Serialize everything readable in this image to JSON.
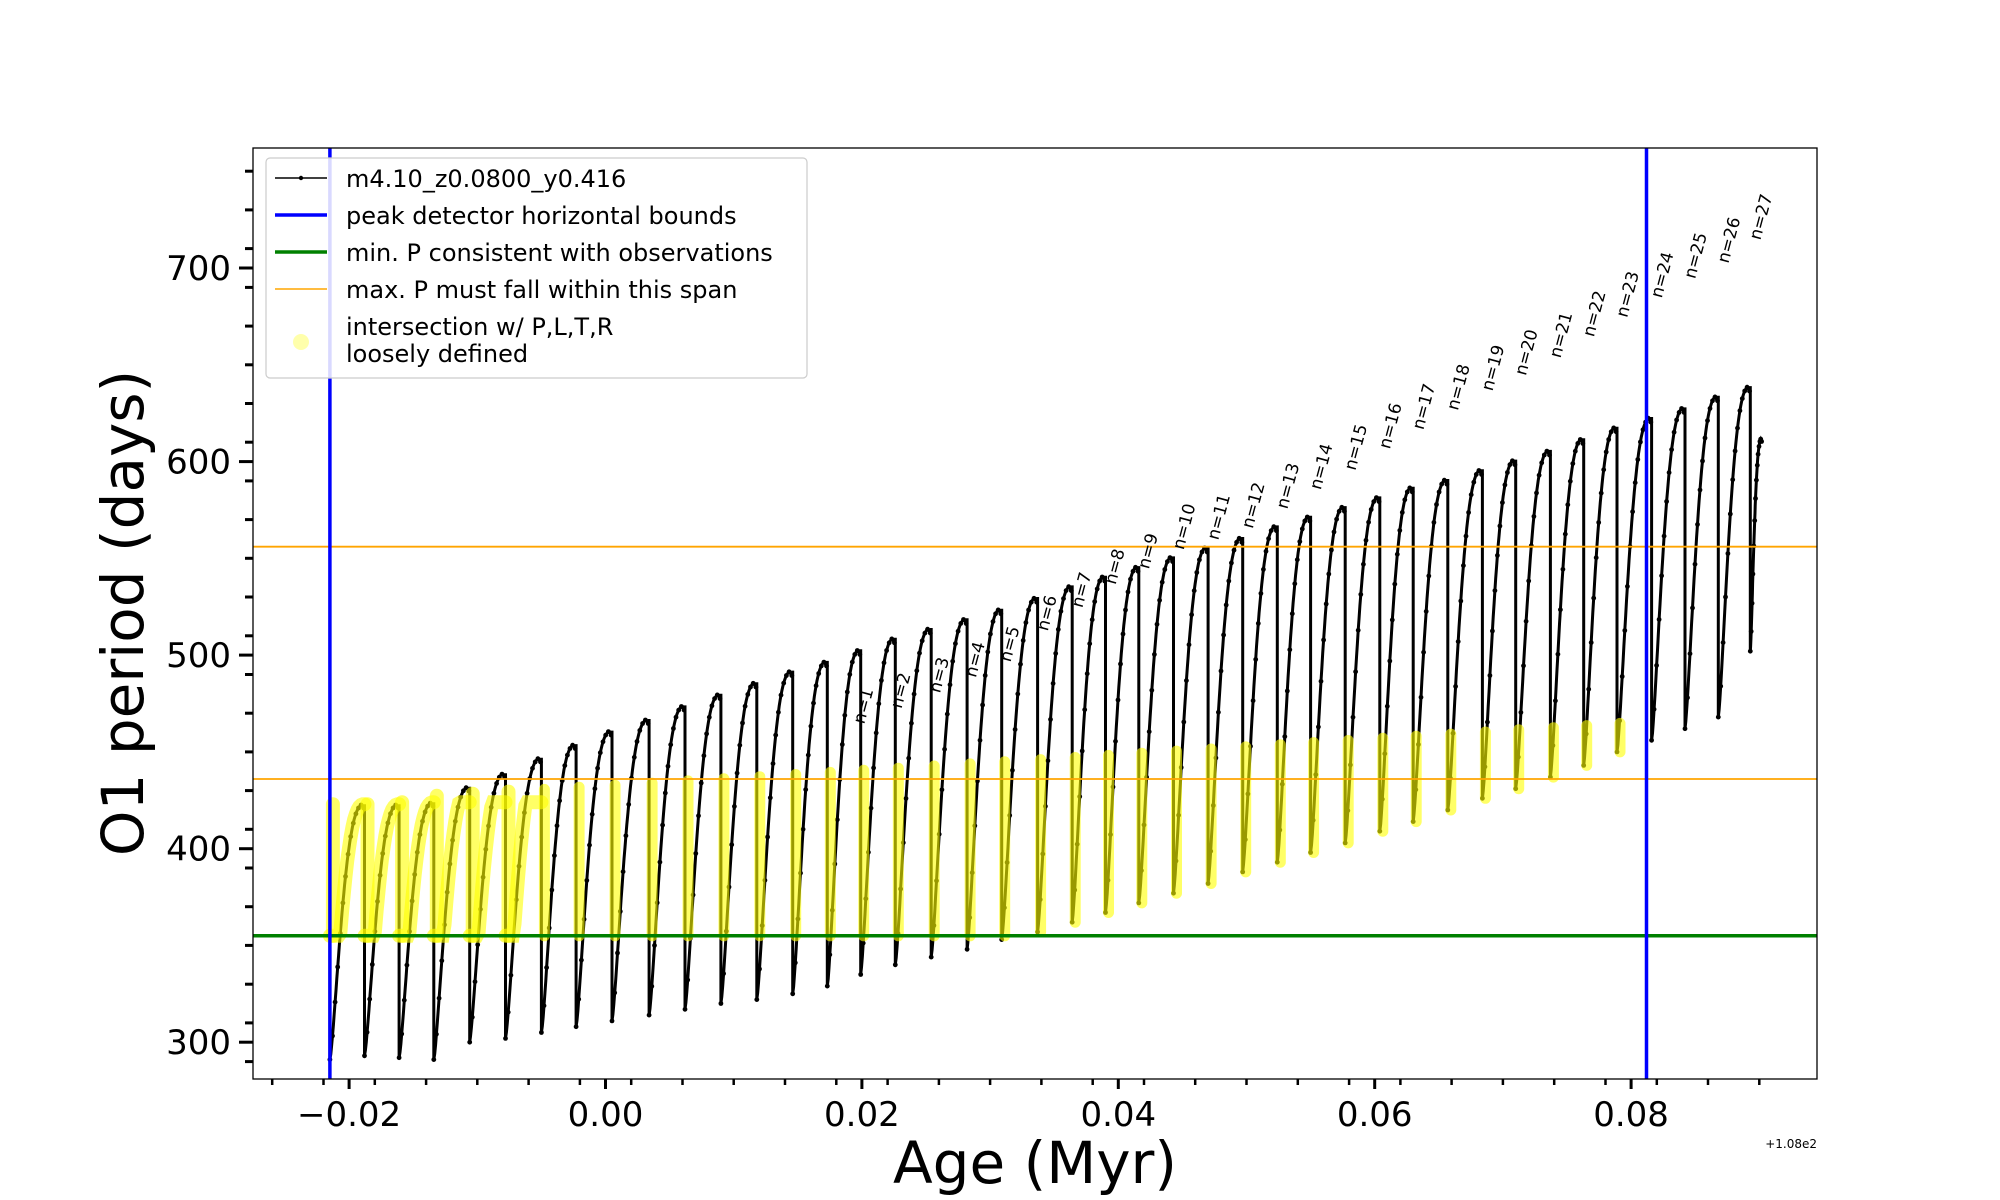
{
  "chart_data": {
    "type": "line",
    "xlabel": "Age (Myr)",
    "ylabel": "O1 period (days)",
    "x_offset_text": "+1.08e2",
    "xlim": [
      -0.0275,
      0.0945
    ],
    "ylim": [
      281,
      762
    ],
    "x_ticks": [
      -0.02,
      0.0,
      0.02,
      0.04,
      0.06,
      0.08
    ],
    "x_tick_labels": [
      "−0.02",
      "0.00",
      "0.02",
      "0.04",
      "0.06",
      "0.08"
    ],
    "y_ticks": [
      300,
      400,
      500,
      600,
      700
    ],
    "y_tick_labels": [
      "300",
      "400",
      "500",
      "600",
      "700"
    ],
    "grid": false,
    "legend_position": "upper-left",
    "legend": [
      {
        "label": "m4.10_z0.0800_y0.416",
        "style": "line-marker",
        "color": "#000000"
      },
      {
        "label": "peak detector horizontal bounds",
        "style": "line",
        "color": "#0000ff"
      },
      {
        "label": "min. P consistent with observations",
        "style": "line",
        "color": "#008000"
      },
      {
        "label": "max. P must fall within this span",
        "style": "thin-line",
        "color": "#ffa500"
      },
      {
        "label": "intersection w/ P,L,T,R",
        "label_line2": "loosely defined",
        "style": "marker",
        "color": "#ffff00"
      }
    ],
    "vertical_lines": [
      {
        "x": -0.0215,
        "color": "#0000ff",
        "role": "peak detector horizontal bounds"
      },
      {
        "x": 0.0812,
        "color": "#0000ff",
        "role": "peak detector horizontal bounds"
      }
    ],
    "horizontal_lines": [
      {
        "y": 355,
        "color": "#008000",
        "role": "min. P consistent with observations"
      },
      {
        "y": 436,
        "color": "#ffa500",
        "role": "max. P span lower"
      },
      {
        "y": 556,
        "color": "#ffa500",
        "role": "max. P span upper"
      }
    ],
    "pulses": [
      {
        "x": -0.0215,
        "min": 291,
        "max": 423
      },
      {
        "x": -0.0188,
        "min": 293,
        "max": 423
      },
      {
        "x": -0.0161,
        "min": 292,
        "max": 424
      },
      {
        "x": -0.0134,
        "min": 291,
        "max": 432
      },
      {
        "x": -0.0106,
        "min": 300,
        "max": 439
      },
      {
        "x": -0.0078,
        "min": 302,
        "max": 447
      },
      {
        "x": -0.005,
        "min": 305,
        "max": 454
      },
      {
        "x": -0.0023,
        "min": 308,
        "max": 461
      },
      {
        "x": 0.0005,
        "min": 311,
        "max": 467
      },
      {
        "x": 0.0034,
        "min": 314,
        "max": 474
      },
      {
        "x": 0.0062,
        "min": 317,
        "max": 480
      },
      {
        "x": 0.009,
        "min": 320,
        "max": 486
      },
      {
        "x": 0.0118,
        "min": 322,
        "max": 492
      },
      {
        "x": 0.0146,
        "min": 325,
        "max": 497
      },
      {
        "x": 0.0173,
        "min": 329,
        "max": 503
      },
      {
        "x": 0.0199,
        "min": 335,
        "max": 509
      },
      {
        "x": 0.0226,
        "min": 340,
        "max": 514
      },
      {
        "x": 0.0254,
        "min": 344,
        "max": 519
      },
      {
        "x": 0.0282,
        "min": 348,
        "max": 524
      },
      {
        "x": 0.0309,
        "min": 353,
        "max": 530
      },
      {
        "x": 0.0337,
        "min": 357,
        "max": 536
      },
      {
        "x": 0.0364,
        "min": 362,
        "max": 541
      },
      {
        "x": 0.039,
        "min": 367,
        "max": 546
      },
      {
        "x": 0.0416,
        "min": 372,
        "max": 551
      },
      {
        "x": 0.0443,
        "min": 377,
        "max": 556
      },
      {
        "x": 0.047,
        "min": 382,
        "max": 561
      },
      {
        "x": 0.0497,
        "min": 388,
        "max": 567
      },
      {
        "x": 0.0524,
        "min": 393,
        "max": 572
      },
      {
        "x": 0.055,
        "min": 398,
        "max": 577
      },
      {
        "x": 0.0577,
        "min": 403,
        "max": 582
      },
      {
        "x": 0.0604,
        "min": 409,
        "max": 587
      },
      {
        "x": 0.063,
        "min": 414,
        "max": 591
      },
      {
        "x": 0.0657,
        "min": 420,
        "max": 596
      },
      {
        "x": 0.0684,
        "min": 426,
        "max": 601
      },
      {
        "x": 0.071,
        "min": 431,
        "max": 606
      },
      {
        "x": 0.0737,
        "min": 437,
        "max": 612
      },
      {
        "x": 0.0763,
        "min": 443,
        "max": 618
      },
      {
        "x": 0.0789,
        "min": 450,
        "max": 623
      },
      {
        "x": 0.0816,
        "min": 456,
        "max": 628
      },
      {
        "x": 0.0842,
        "min": 462,
        "max": 634
      },
      {
        "x": 0.0868,
        "min": 468,
        "max": 639
      },
      {
        "x": 0.0893,
        "min": 502,
        "max": 612
      }
    ],
    "n_labels": [
      {
        "label": "n=1",
        "x": 0.0194,
        "y": 462
      },
      {
        "label": "n=2",
        "x": 0.0223,
        "y": 470
      },
      {
        "label": "n=3",
        "x": 0.0253,
        "y": 478
      },
      {
        "label": "n=4",
        "x": 0.0281,
        "y": 486
      },
      {
        "label": "n=5",
        "x": 0.0308,
        "y": 494
      },
      {
        "label": "n=6",
        "x": 0.0337,
        "y": 510
      },
      {
        "label": "n=7",
        "x": 0.0364,
        "y": 522
      },
      {
        "label": "n=8",
        "x": 0.039,
        "y": 534
      },
      {
        "label": "n=9",
        "x": 0.0416,
        "y": 542
      },
      {
        "label": "n=10",
        "x": 0.0443,
        "y": 552
      },
      {
        "label": "n=11",
        "x": 0.047,
        "y": 557
      },
      {
        "label": "n=12",
        "x": 0.0497,
        "y": 563
      },
      {
        "label": "n=13",
        "x": 0.0524,
        "y": 573
      },
      {
        "label": "n=14",
        "x": 0.055,
        "y": 583
      },
      {
        "label": "n=15",
        "x": 0.0577,
        "y": 593
      },
      {
        "label": "n=16",
        "x": 0.0604,
        "y": 604
      },
      {
        "label": "n=17",
        "x": 0.063,
        "y": 614
      },
      {
        "label": "n=18",
        "x": 0.0657,
        "y": 624
      },
      {
        "label": "n=19",
        "x": 0.0684,
        "y": 634
      },
      {
        "label": "n=20",
        "x": 0.071,
        "y": 642
      },
      {
        "label": "n=21",
        "x": 0.0737,
        "y": 651
      },
      {
        "label": "n=22",
        "x": 0.0763,
        "y": 662
      },
      {
        "label": "n=23",
        "x": 0.0789,
        "y": 672
      },
      {
        "label": "n=24",
        "x": 0.0816,
        "y": 682
      },
      {
        "label": "n=25",
        "x": 0.0842,
        "y": 692
      },
      {
        "label": "n=26",
        "x": 0.0868,
        "y": 700
      },
      {
        "label": "n=27",
        "x": 0.0893,
        "y": 712
      }
    ],
    "colors": {
      "track": "#000000",
      "detector": "#0000ff",
      "min_p": "#008000",
      "max_p_span": "#ffa500",
      "intersection": "#ffff00"
    }
  }
}
